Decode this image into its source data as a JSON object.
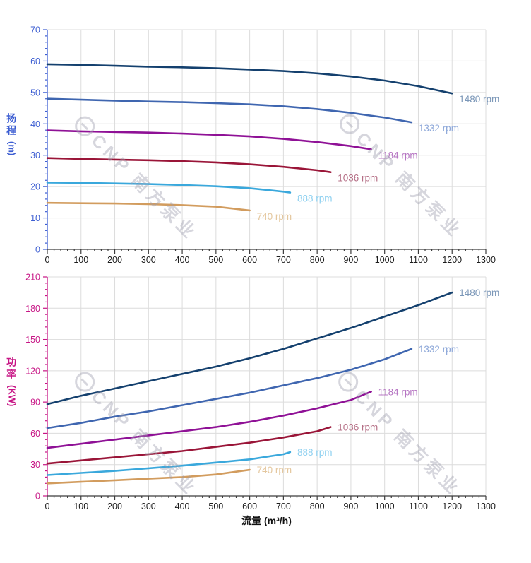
{
  "axes": {
    "head": {
      "title": "扬程",
      "unit": "(m)",
      "color": "#3d5ed2"
    },
    "power": {
      "title": "功率",
      "unit": "(KW)",
      "color": "#c71585"
    },
    "x": {
      "title": "流量 (m³/h)"
    }
  },
  "watermark": {
    "text": "CNP 南方泵业"
  },
  "chart_data": [
    {
      "type": "line",
      "title": "",
      "xlabel": "流量 (m³/h)",
      "ylabel": "扬程 (m)",
      "xlim": [
        0,
        1300
      ],
      "ylim": [
        0,
        70
      ],
      "x_major": 100,
      "x_minor": 20,
      "y_major": 10,
      "y_minor": 2,
      "grid": true,
      "axis_color": "#3d5ed2",
      "legend_position": "end-of-line",
      "series": [
        {
          "name": "1480 rpm",
          "color": "#14406e",
          "label_color": "#7b97b8",
          "points": [
            [
              0,
              59
            ],
            [
              100,
              58.8
            ],
            [
              200,
              58.5
            ],
            [
              300,
              58.2
            ],
            [
              400,
              58.0
            ],
            [
              500,
              57.7
            ],
            [
              600,
              57.3
            ],
            [
              700,
              56.8
            ],
            [
              800,
              56.1
            ],
            [
              900,
              55.1
            ],
            [
              1000,
              53.8
            ],
            [
              1100,
              52.0
            ],
            [
              1200,
              49.7
            ]
          ]
        },
        {
          "name": "1332 rpm",
          "color": "#3f66b0",
          "label_color": "#8ea8d9",
          "points": [
            [
              0,
              48
            ],
            [
              100,
              47.7
            ],
            [
              200,
              47.4
            ],
            [
              300,
              47.1
            ],
            [
              400,
              46.9
            ],
            [
              500,
              46.6
            ],
            [
              600,
              46.2
            ],
            [
              700,
              45.6
            ],
            [
              800,
              44.7
            ],
            [
              900,
              43.5
            ],
            [
              1000,
              42.0
            ],
            [
              1080,
              40.5
            ]
          ]
        },
        {
          "name": "1184 rpm",
          "color": "#8f1196",
          "label_color": "#b574c2",
          "points": [
            [
              0,
              37.9
            ],
            [
              100,
              37.6
            ],
            [
              200,
              37.4
            ],
            [
              300,
              37.2
            ],
            [
              400,
              36.9
            ],
            [
              500,
              36.5
            ],
            [
              600,
              36.0
            ],
            [
              700,
              35.2
            ],
            [
              800,
              34.2
            ],
            [
              900,
              32.9
            ],
            [
              960,
              31.9
            ]
          ]
        },
        {
          "name": "1036 rpm",
          "color": "#9a1538",
          "label_color": "#b56f86",
          "points": [
            [
              0,
              29.1
            ],
            [
              100,
              28.8
            ],
            [
              200,
              28.6
            ],
            [
              300,
              28.4
            ],
            [
              400,
              28.1
            ],
            [
              500,
              27.7
            ],
            [
              600,
              27.1
            ],
            [
              700,
              26.3
            ],
            [
              800,
              25.2
            ],
            [
              840,
              24.6
            ]
          ]
        },
        {
          "name": "888 rpm",
          "color": "#3aa8dc",
          "label_color": "#8ed0f0",
          "points": [
            [
              0,
              21.3
            ],
            [
              100,
              21.2
            ],
            [
              200,
              21.0
            ],
            [
              300,
              20.8
            ],
            [
              400,
              20.5
            ],
            [
              500,
              20.1
            ],
            [
              600,
              19.5
            ],
            [
              700,
              18.4
            ],
            [
              720,
              18.1
            ]
          ]
        },
        {
          "name": "740 rpm",
          "color": "#d29c5e",
          "label_color": "#e4c79e",
          "points": [
            [
              0,
              14.8
            ],
            [
              100,
              14.7
            ],
            [
              200,
              14.6
            ],
            [
              300,
              14.4
            ],
            [
              400,
              14.1
            ],
            [
              500,
              13.6
            ],
            [
              600,
              12.4
            ]
          ]
        }
      ]
    },
    {
      "type": "line",
      "title": "",
      "xlabel": "流量 (m³/h)",
      "ylabel": "功率 (KW)",
      "xlim": [
        0,
        1300
      ],
      "ylim": [
        0,
        210
      ],
      "x_major": 100,
      "x_minor": 20,
      "y_major": 30,
      "y_minor": 6,
      "grid": true,
      "axis_color": "#c71585",
      "legend_position": "end-of-line",
      "series": [
        {
          "name": "1480 rpm",
          "color": "#14406e",
          "label_color": "#7b97b8",
          "points": [
            [
              0,
              88
            ],
            [
              100,
              96
            ],
            [
              200,
              103
            ],
            [
              300,
              110
            ],
            [
              400,
              117
            ],
            [
              500,
              124
            ],
            [
              600,
              132
            ],
            [
              700,
              141
            ],
            [
              800,
              151
            ],
            [
              900,
              161
            ],
            [
              1000,
              172
            ],
            [
              1100,
              183
            ],
            [
              1200,
              195
            ]
          ]
        },
        {
          "name": "1332 rpm",
          "color": "#3f66b0",
          "label_color": "#8ea8d9",
          "points": [
            [
              0,
              65
            ],
            [
              100,
              70
            ],
            [
              200,
              76
            ],
            [
              300,
              81
            ],
            [
              400,
              87
            ],
            [
              500,
              93
            ],
            [
              600,
              99
            ],
            [
              700,
              106
            ],
            [
              800,
              113
            ],
            [
              900,
              121
            ],
            [
              1000,
              131
            ],
            [
              1080,
              141
            ]
          ]
        },
        {
          "name": "1184 rpm",
          "color": "#8f1196",
          "label_color": "#b574c2",
          "points": [
            [
              0,
              46
            ],
            [
              100,
              50
            ],
            [
              200,
              54
            ],
            [
              300,
              58
            ],
            [
              400,
              62
            ],
            [
              500,
              66
            ],
            [
              600,
              71
            ],
            [
              700,
              77
            ],
            [
              800,
              84
            ],
            [
              900,
              92
            ],
            [
              960,
              100
            ]
          ]
        },
        {
          "name": "1036 rpm",
          "color": "#9a1538",
          "label_color": "#b56f86",
          "points": [
            [
              0,
              31
            ],
            [
              100,
              34
            ],
            [
              200,
              37
            ],
            [
              300,
              40
            ],
            [
              400,
              43
            ],
            [
              500,
              47
            ],
            [
              600,
              51
            ],
            [
              700,
              56
            ],
            [
              800,
              62
            ],
            [
              840,
              66
            ]
          ]
        },
        {
          "name": "888 rpm",
          "color": "#3aa8dc",
          "label_color": "#8ed0f0",
          "points": [
            [
              0,
              20
            ],
            [
              100,
              22
            ],
            [
              200,
              24
            ],
            [
              300,
              26.5
            ],
            [
              400,
              29
            ],
            [
              500,
              32
            ],
            [
              600,
              35
            ],
            [
              700,
              40
            ],
            [
              720,
              42
            ]
          ]
        },
        {
          "name": "740 rpm",
          "color": "#d29c5e",
          "label_color": "#e4c79e",
          "points": [
            [
              0,
              12
            ],
            [
              100,
              13.5
            ],
            [
              200,
              15
            ],
            [
              300,
              16.5
            ],
            [
              400,
              18
            ],
            [
              500,
              20.5
            ],
            [
              600,
              25
            ]
          ]
        }
      ]
    }
  ]
}
